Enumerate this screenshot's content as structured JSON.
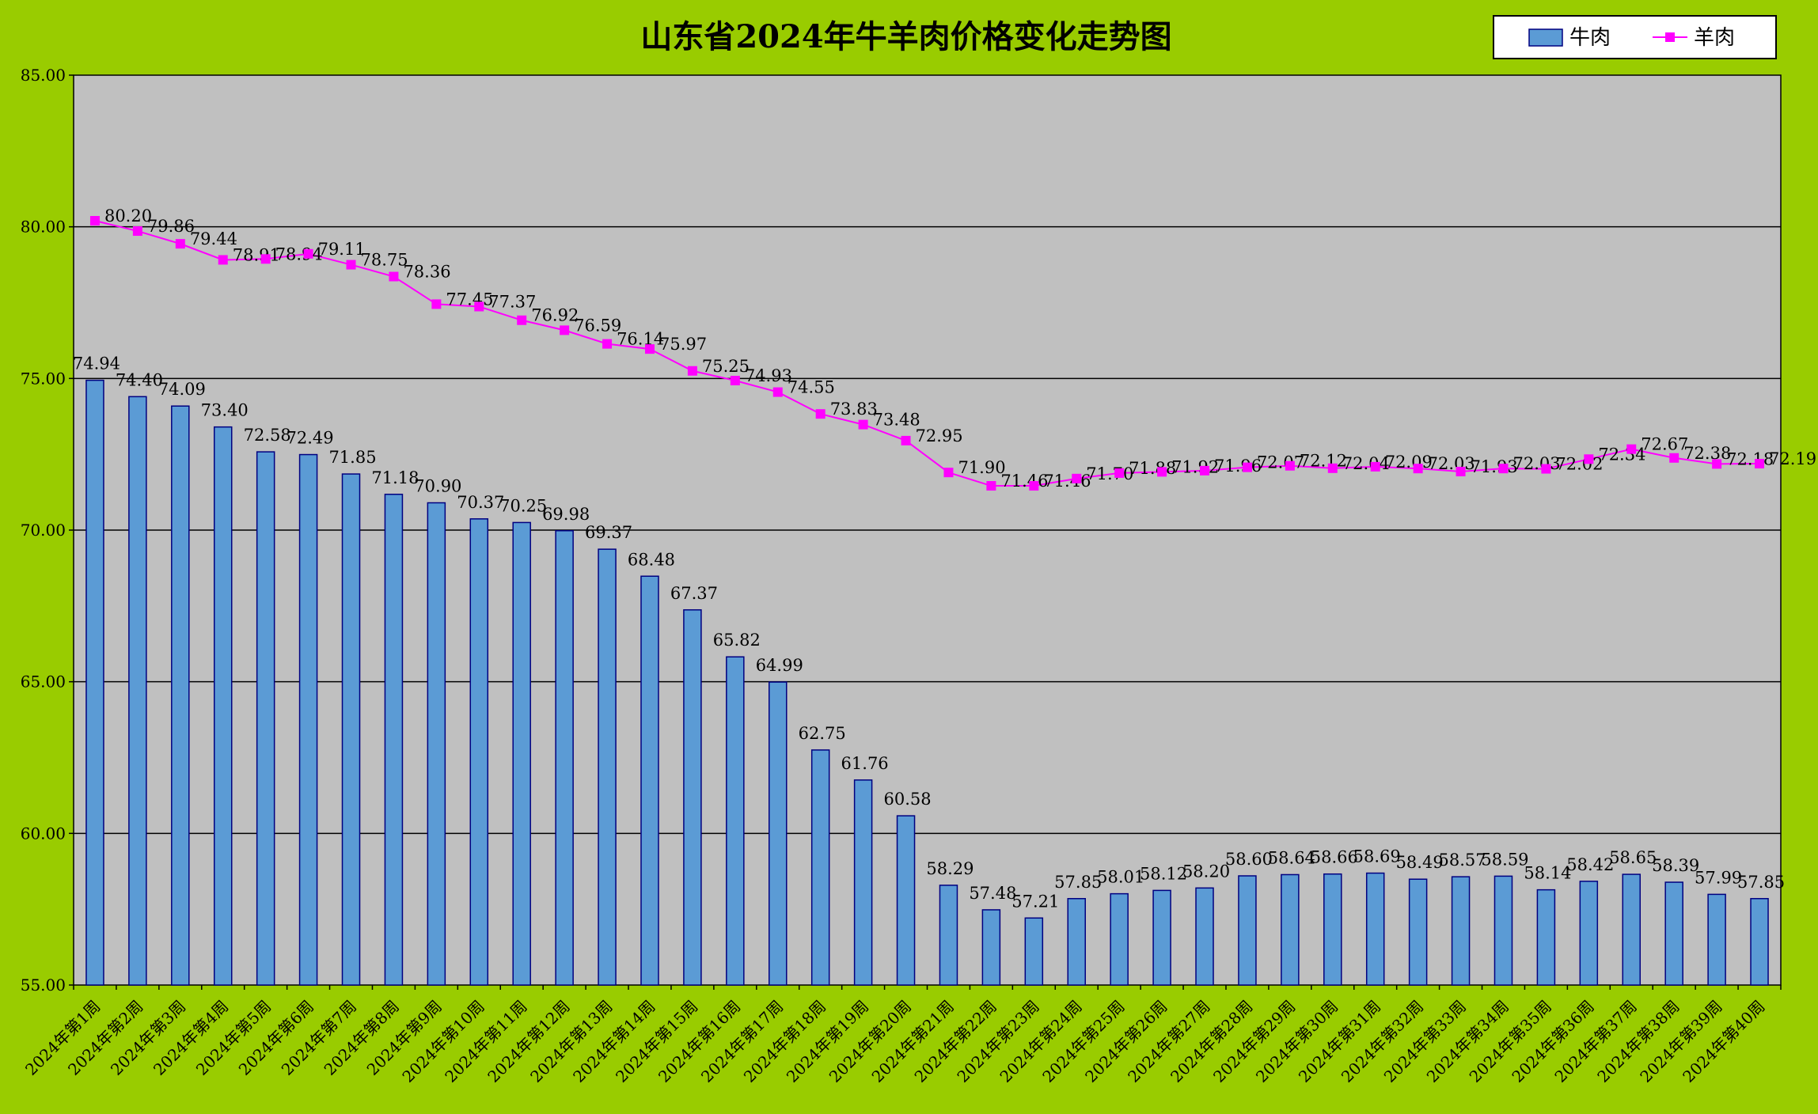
{
  "chart_data": {
    "type": "bar",
    "title": "山东省2024年牛羊肉价格变化走势图",
    "ylim": [
      55,
      85
    ],
    "ytick_labels": [
      "55.00",
      "60.00",
      "65.00",
      "70.00",
      "75.00",
      "80.00",
      "85.00"
    ],
    "ytick_values": [
      55,
      60,
      65,
      70,
      75,
      80,
      85
    ],
    "grid": true,
    "legend_position": "top-right",
    "categories": [
      "2024年第1周",
      "2024年第2周",
      "2024年第3周",
      "2024年第4周",
      "2024年第5周",
      "2024年第6周",
      "2024年第7周",
      "2024年第8周",
      "2024年第9周",
      "2024年第10周",
      "2024年第11周",
      "2024年第12周",
      "2024年第13周",
      "2024年第14周",
      "2024年第15周",
      "2024年第16周",
      "2024年第17周",
      "2024年第18周",
      "2024年第19周",
      "2024年第20周",
      "2024年第21周",
      "2024年第22周",
      "2024年第23周",
      "2024年第24周",
      "2024年第25周",
      "2024年第26周",
      "2024年第27周",
      "2024年第28周",
      "2024年第29周",
      "2024年第30周",
      "2024年第31周",
      "2024年第32周",
      "2024年第33周",
      "2024年第34周",
      "2024年第35周",
      "2024年第36周",
      "2024年第37周",
      "2024年第38周",
      "2024年第39周",
      "2024年第40周"
    ],
    "series": [
      {
        "name": "牛肉",
        "type": "bar",
        "color": "#5B9BD5",
        "values": [
          74.94,
          74.4,
          74.09,
          73.4,
          72.58,
          72.49,
          71.85,
          71.18,
          70.9,
          70.37,
          70.25,
          69.98,
          69.37,
          68.48,
          67.37,
          65.82,
          64.99,
          62.75,
          61.76,
          60.58,
          58.29,
          57.48,
          57.21,
          57.85,
          58.01,
          58.12,
          58.2,
          58.6,
          58.64,
          58.66,
          58.69,
          58.49,
          58.57,
          58.59,
          58.14,
          58.42,
          58.65,
          58.39,
          57.99,
          57.85
        ],
        "labels": [
          "74.94",
          "74.40",
          "74.09",
          "73.40",
          "72.58",
          "72.49",
          "71.85",
          "71.18",
          "70.90",
          "70.37",
          "70.25",
          "69.98",
          "69.37",
          "68.48",
          "67.37",
          "65.82",
          "64.99",
          "62.75",
          "61.76",
          "60.58",
          "58.29",
          "57.48",
          "57.21",
          "57.85",
          "58.01",
          "58.12",
          "58.20",
          "58.60",
          "58.64",
          "58.66",
          "58.69",
          "58.49",
          "58.57",
          "58.59",
          "58.14",
          "58.42",
          "58.65",
          "58.39",
          "57.99",
          "57.85"
        ]
      },
      {
        "name": "羊肉",
        "type": "line",
        "color": "#FF00FF",
        "values": [
          80.2,
          79.86,
          79.44,
          78.91,
          78.94,
          79.11,
          78.75,
          78.36,
          77.45,
          77.37,
          76.92,
          76.59,
          76.14,
          75.97,
          75.25,
          74.93,
          74.55,
          73.83,
          73.48,
          72.95,
          71.9,
          71.46,
          71.46,
          71.7,
          71.88,
          71.92,
          71.96,
          72.07,
          72.12,
          72.04,
          72.09,
          72.03,
          71.93,
          72.03,
          72.02,
          72.34,
          72.67,
          72.38,
          72.18,
          72.19
        ],
        "labels": [
          "80.20",
          "79.86",
          "79.44",
          "78.91",
          "78.94",
          "79.11",
          "78.75",
          "78.36",
          "77.45",
          "77.37",
          "76.92",
          "76.59",
          "76.14",
          "75.97",
          "75.25",
          "74.93",
          "74.55",
          "73.83",
          "73.48",
          "72.95",
          "71.90",
          "71.46",
          "71.46",
          "71.70",
          "71.88",
          "71.92",
          "71.96",
          "72.07",
          "72.12",
          "72.04",
          "72.09",
          "72.03",
          "71.93",
          "72.03",
          "72.02",
          "72.34",
          "72.67",
          "72.38",
          "72.18",
          "72.19"
        ]
      }
    ]
  },
  "colors": {
    "background": "#99CC00",
    "plot_area": "#C0C0C0",
    "bar_fill": "#5B9BD5",
    "bar_stroke": "#000080",
    "line": "#FF00FF"
  }
}
